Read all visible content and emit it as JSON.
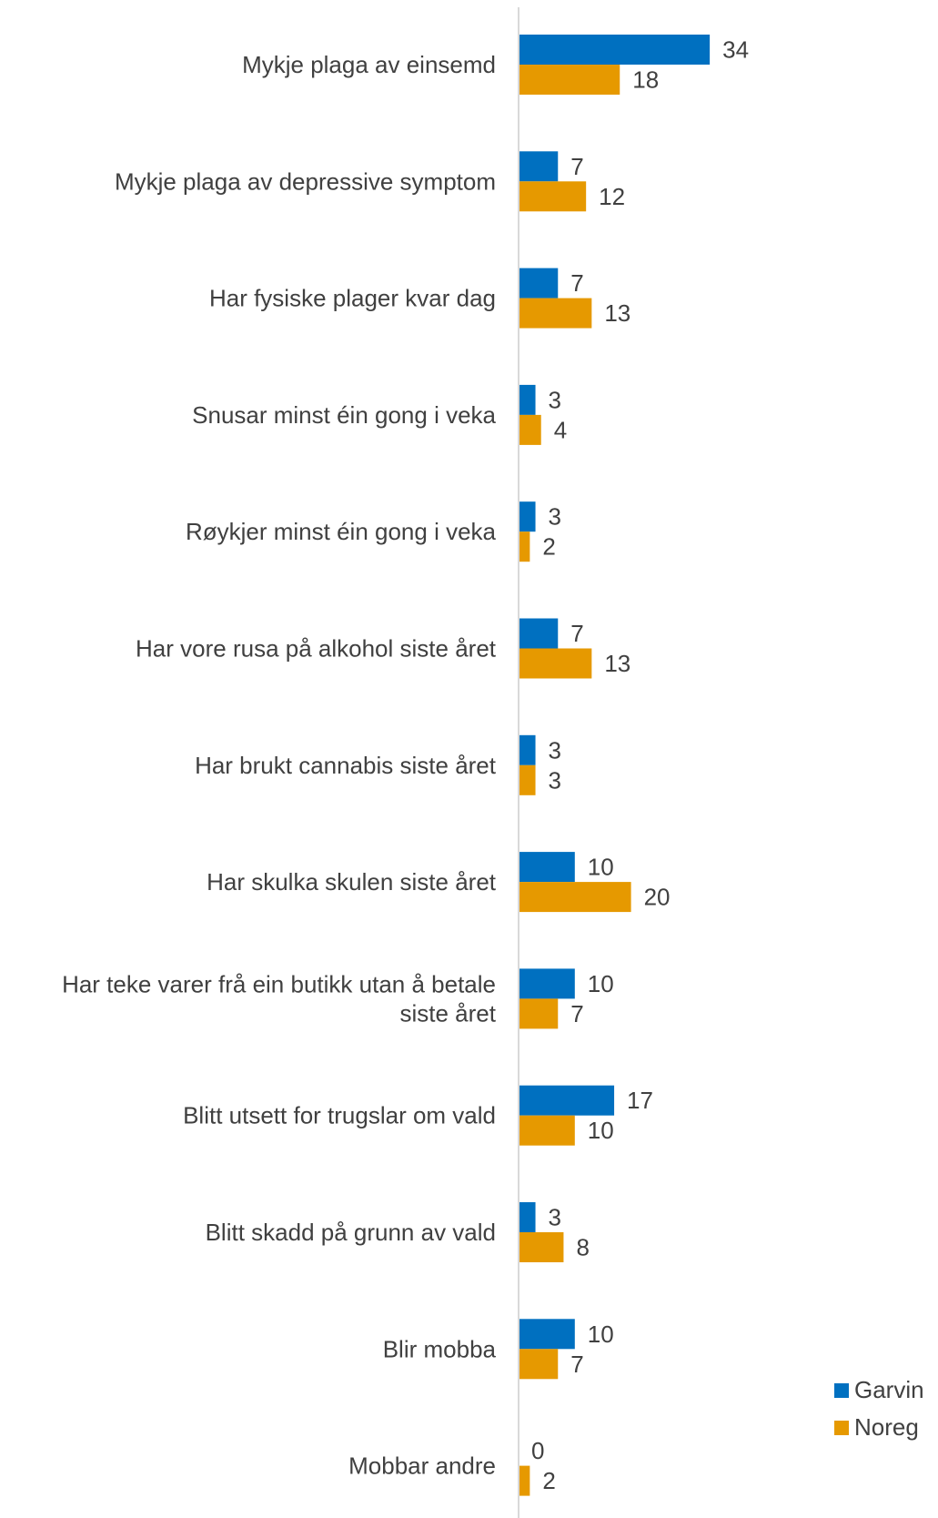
{
  "chart_data": {
    "type": "bar",
    "orientation": "horizontal",
    "categories": [
      [
        "Mykje plaga av einsemd"
      ],
      [
        "Mykje plaga av depressive symptom"
      ],
      [
        "Har fysiske plager kvar dag"
      ],
      [
        "Snusar minst éin gong i veka"
      ],
      [
        "Røykjer minst éin gong i veka"
      ],
      [
        "Har vore rusa på alkohol siste året"
      ],
      [
        "Har brukt cannabis siste året"
      ],
      [
        "Har skulka skulen siste året"
      ],
      [
        "Har teke varer frå ein butikk utan å betale",
        "siste året"
      ],
      [
        "Blitt utsett for trugslar om vald"
      ],
      [
        "Blitt skadd på grunn av vald"
      ],
      [
        "Blir mobba"
      ],
      [
        "Mobbar andre"
      ]
    ],
    "series": [
      {
        "name": "Garvin",
        "color": "#0070C0",
        "values": [
          34,
          7,
          7,
          3,
          3,
          7,
          3,
          10,
          10,
          17,
          3,
          10,
          0
        ]
      },
      {
        "name": "Noreg",
        "color": "#E69900",
        "values": [
          18,
          12,
          13,
          4,
          2,
          13,
          3,
          20,
          7,
          10,
          8,
          7,
          2
        ]
      }
    ],
    "xlim": [
      0,
      40
    ],
    "grid": false,
    "legend_position": "bottom-right"
  }
}
